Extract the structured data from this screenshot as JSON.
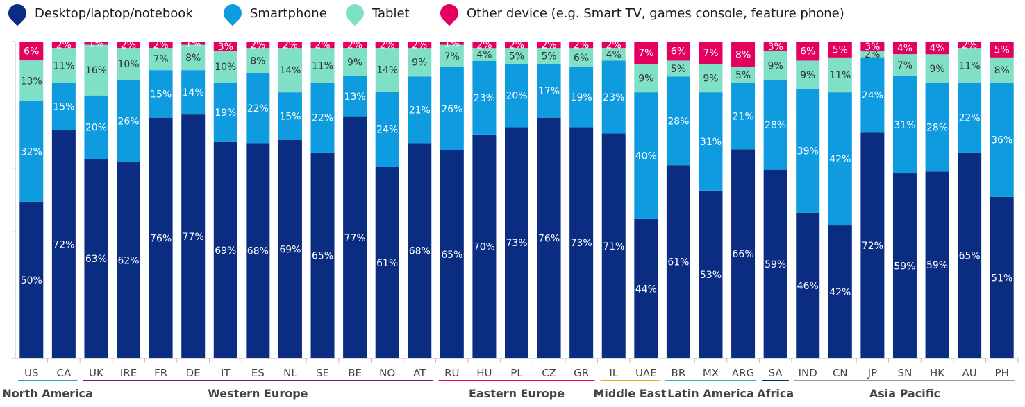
{
  "chart_data": {
    "type": "bar",
    "stacked": true,
    "ylim": [
      0,
      100
    ],
    "legend": [
      {
        "name": "Desktop/laptop/notebook",
        "color": "#0a2d82"
      },
      {
        "name": "Smartphone",
        "color": "#0f9be0"
      },
      {
        "name": "Tablet",
        "color": "#7fe0c6"
      },
      {
        "name": "Other device (e.g. Smart TV, games console, feature phone)",
        "color": "#e3005f"
      }
    ],
    "categories": [
      "US",
      "CA",
      "UK",
      "IRE",
      "FR",
      "DE",
      "IT",
      "ES",
      "NL",
      "SE",
      "BE",
      "NO",
      "AT",
      "RU",
      "HU",
      "PL",
      "CZ",
      "GR",
      "IL",
      "UAE",
      "BR",
      "MX",
      "ARG",
      "SA",
      "IND",
      "CN",
      "JP",
      "SN",
      "HK",
      "AU",
      "PH"
    ],
    "series": [
      {
        "name": "Desktop/laptop/notebook",
        "values": [
          50,
          72,
          63,
          62,
          76,
          77,
          69,
          68,
          69,
          65,
          77,
          61,
          68,
          65,
          70,
          73,
          76,
          73,
          71,
          44,
          61,
          53,
          66,
          59,
          46,
          42,
          72,
          59,
          59,
          65,
          51
        ]
      },
      {
        "name": "Smartphone",
        "values": [
          32,
          15,
          20,
          26,
          15,
          14,
          19,
          22,
          15,
          22,
          13,
          24,
          21,
          26,
          23,
          20,
          17,
          19,
          23,
          40,
          28,
          31,
          21,
          28,
          39,
          42,
          24,
          31,
          28,
          22,
          36
        ]
      },
      {
        "name": "Tablet",
        "values": [
          13,
          11,
          16,
          10,
          7,
          8,
          10,
          8,
          14,
          11,
          9,
          14,
          9,
          7,
          4,
          5,
          5,
          6,
          4,
          9,
          5,
          9,
          5,
          9,
          9,
          11,
          2,
          7,
          9,
          11,
          8
        ]
      },
      {
        "name": "Other device (e.g. Smart TV, games console, feature phone)",
        "values": [
          6,
          2,
          1,
          2,
          2,
          1,
          3,
          2,
          2,
          2,
          2,
          2,
          2,
          1,
          2,
          2,
          2,
          2,
          2,
          7,
          6,
          7,
          8,
          3,
          6,
          5,
          3,
          4,
          4,
          2,
          5
        ]
      }
    ],
    "value_labels": [
      [
        "50%",
        "72%",
        "63%",
        "62%",
        "76%",
        "77%",
        "69%",
        "68%",
        "69%",
        "65%",
        "77%",
        "61%",
        "68%",
        "65%",
        "70%",
        "73%",
        "76%",
        "73%",
        "71%",
        "44%",
        "61%",
        "53%",
        "66%",
        "59%",
        "46%",
        "42%",
        "72%",
        "59%",
        "59%",
        "65%",
        "51%"
      ],
      [
        "32%",
        "15%",
        "20%",
        "26%",
        "15%",
        "14%",
        "19%",
        "22%",
        "15%",
        "22%",
        "13%",
        "24%",
        "21%",
        "26%",
        "23%",
        "20%",
        "17%",
        "19%",
        "23%",
        "40%",
        "28%",
        "31%",
        "21%",
        "28%",
        "39%",
        "42%",
        "24%",
        "31%",
        "28%",
        "22%",
        "36%"
      ],
      [
        "13%",
        "11%",
        "16%",
        "10%",
        "7%",
        "8%",
        "10%",
        "8%",
        "14%",
        "11%",
        "9%",
        "14%",
        "9%",
        "7%",
        "4%",
        "5%",
        "5%",
        "6%",
        "4%",
        "9%",
        "5%",
        "9%",
        "5%",
        "9%",
        "9%",
        "11%",
        "2%",
        "7%",
        "9%",
        "11%",
        "8%"
      ],
      [
        "6%",
        "2%",
        "1%",
        "2%",
        "2%",
        "1%",
        "3%",
        "2%",
        "2%",
        "2%",
        "2%",
        "2%",
        "2%",
        "1%",
        "2%",
        "2%",
        "2%",
        "2%",
        "2%",
        "7%",
        "6%",
        "7%",
        "8%",
        "3%",
        "6%",
        "5%",
        "3%",
        "4%",
        "4%",
        "2%",
        "5%"
      ]
    ],
    "groups": [
      {
        "name": "North America",
        "start": 0,
        "end": 1,
        "color": "#2a9fd6"
      },
      {
        "name": "Western Europe",
        "start": 2,
        "end": 12,
        "color": "#6a1a8a"
      },
      {
        "name": "Eastern Europe",
        "start": 13,
        "end": 17,
        "color": "#e3005f"
      },
      {
        "name": "Middle East",
        "start": 18,
        "end": 19,
        "color": "#f5a21b"
      },
      {
        "name": "Latin America",
        "start": 20,
        "end": 22,
        "color": "#2ec4a0"
      },
      {
        "name": "Africa",
        "start": 23,
        "end": 23,
        "color": "#0a2d82"
      },
      {
        "name": "Asia Pacific",
        "start": 24,
        "end": 30,
        "color": "#9a9a9a"
      }
    ]
  }
}
